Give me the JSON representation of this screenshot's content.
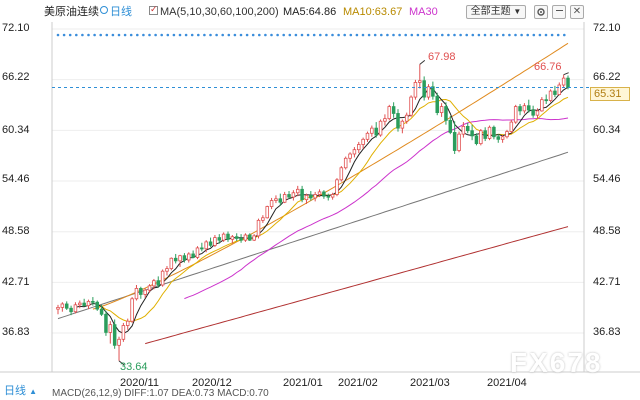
{
  "toolbar": {
    "instrument": "美原油连续",
    "period": "日线",
    "period_icon": "circle-icon",
    "ma_label": "MA(5,10,30,60,100,200)",
    "ma5": "MA5:64.86",
    "ma10": "MA10:63.67",
    "ma30": "MA30",
    "theme_button": "全部主题",
    "theme_button_icon": "chevron-down-icon",
    "icons": [
      "gear-icon",
      "minimize-icon",
      "close-icon"
    ]
  },
  "colors": {
    "up": "#e05050",
    "down": "#2a9d5c",
    "ma5": "#222222",
    "ma10": "#e0b000",
    "ma30": "#cc33cc",
    "ma60": "#e08a1e",
    "ma100": "#777777",
    "ma200": "#b03030",
    "dashline": "#2f8fd6"
  },
  "footer": {
    "period": "日线",
    "macd_text": "MACD(26,12,9) DIFF:1.07 DEA:0.73 MACD:0.70"
  },
  "watermark": "FX678",
  "chart_data": {
    "type": "candlestick",
    "title": "美原油连续",
    "period": "日线",
    "y_ticks": [
      "72.10",
      "66.22",
      "60.34",
      "54.46",
      "48.58",
      "42.71",
      "36.83"
    ],
    "x_ticks": [
      "2020/11",
      "2020/12",
      "2021/01",
      "2021/02",
      "2021/03",
      "2021/04"
    ],
    "ylim": [
      33.0,
      73.0
    ],
    "current_price": "65.31",
    "annotations": {
      "high": "67.98",
      "low": "33.64",
      "recent_high": "66.76"
    },
    "candles": [
      [
        39.6,
        40.1,
        39.0,
        39.8
      ],
      [
        39.8,
        40.4,
        39.3,
        40.2
      ],
      [
        40.2,
        40.5,
        39.5,
        39.7
      ],
      [
        39.7,
        40.0,
        38.9,
        39.3
      ],
      [
        39.3,
        40.4,
        39.1,
        40.1
      ],
      [
        40.1,
        40.6,
        39.7,
        40.3
      ],
      [
        40.3,
        40.8,
        39.9,
        40.0
      ],
      [
        40.0,
        40.7,
        39.6,
        40.5
      ],
      [
        40.5,
        41.0,
        40.0,
        40.4
      ],
      [
        40.4,
        40.6,
        39.4,
        39.6
      ],
      [
        39.6,
        40.1,
        38.8,
        39.0
      ],
      [
        39.0,
        39.4,
        36.5,
        36.9
      ],
      [
        36.9,
        38.2,
        35.6,
        37.8
      ],
      [
        37.8,
        38.4,
        35.0,
        35.4
      ],
      [
        35.4,
        36.4,
        33.6,
        36.1
      ],
      [
        36.1,
        38.0,
        35.8,
        37.7
      ],
      [
        37.7,
        38.5,
        37.2,
        38.2
      ],
      [
        38.2,
        41.0,
        38.0,
        40.8
      ],
      [
        40.8,
        42.4,
        40.6,
        42.0
      ],
      [
        42.0,
        42.2,
        40.8,
        41.3
      ],
      [
        41.3,
        42.0,
        40.9,
        41.8
      ],
      [
        41.8,
        42.5,
        41.5,
        42.3
      ],
      [
        42.3,
        43.1,
        41.9,
        42.9
      ],
      [
        42.9,
        43.4,
        42.1,
        42.4
      ],
      [
        42.4,
        44.2,
        42.2,
        44.0
      ],
      [
        44.0,
        44.6,
        43.5,
        44.3
      ],
      [
        44.3,
        45.6,
        44.1,
        45.5
      ],
      [
        45.5,
        46.0,
        44.9,
        45.2
      ],
      [
        45.2,
        45.9,
        44.5,
        45.8
      ],
      [
        45.8,
        46.1,
        45.0,
        45.3
      ],
      [
        45.3,
        46.2,
        45.0,
        46.0
      ],
      [
        46.0,
        46.4,
        45.5,
        45.6
      ],
      [
        45.6,
        46.9,
        45.4,
        46.7
      ],
      [
        46.7,
        47.3,
        46.3,
        46.6
      ],
      [
        46.6,
        47.6,
        46.2,
        47.4
      ],
      [
        47.4,
        47.9,
        46.8,
        47.0
      ],
      [
        47.0,
        48.2,
        46.8,
        47.9
      ],
      [
        47.9,
        48.3,
        47.2,
        47.6
      ],
      [
        47.6,
        48.5,
        47.4,
        48.3
      ],
      [
        48.3,
        48.6,
        47.4,
        47.7
      ],
      [
        47.7,
        48.2,
        47.2,
        48.0
      ],
      [
        48.0,
        48.4,
        47.5,
        47.8
      ],
      [
        47.8,
        48.3,
        47.3,
        47.6
      ],
      [
        47.6,
        48.4,
        47.4,
        48.2
      ],
      [
        48.2,
        48.4,
        47.5,
        47.6
      ],
      [
        47.6,
        48.3,
        47.5,
        48.1
      ],
      [
        48.1,
        50.1,
        47.8,
        49.9
      ],
      [
        49.9,
        50.5,
        49.6,
        50.2
      ],
      [
        50.2,
        51.6,
        50.1,
        51.5
      ],
      [
        51.5,
        52.5,
        51.2,
        52.2
      ],
      [
        52.2,
        52.8,
        51.9,
        52.4
      ],
      [
        52.4,
        53.0,
        51.6,
        52.0
      ],
      [
        52.0,
        53.2,
        51.9,
        52.9
      ],
      [
        52.9,
        53.3,
        52.4,
        52.6
      ],
      [
        52.6,
        53.4,
        52.2,
        53.1
      ],
      [
        53.1,
        53.9,
        52.7,
        53.5
      ],
      [
        53.5,
        53.9,
        52.0,
        52.3
      ],
      [
        52.3,
        53.0,
        51.8,
        52.8
      ],
      [
        52.8,
        53.3,
        52.2,
        52.5
      ],
      [
        52.5,
        53.2,
        52.1,
        52.9
      ],
      [
        52.9,
        53.5,
        52.6,
        53.2
      ],
      [
        53.2,
        53.4,
        52.4,
        52.7
      ],
      [
        52.7,
        53.0,
        52.2,
        52.6
      ],
      [
        52.6,
        53.1,
        52.3,
        52.9
      ],
      [
        52.9,
        54.8,
        52.7,
        54.6
      ],
      [
        54.6,
        56.2,
        54.4,
        56.0
      ],
      [
        56.0,
        57.3,
        55.8,
        57.1
      ],
      [
        57.1,
        57.8,
        56.6,
        57.6
      ],
      [
        57.6,
        58.4,
        57.2,
        58.1
      ],
      [
        58.1,
        59.0,
        57.7,
        58.7
      ],
      [
        58.7,
        59.5,
        58.2,
        59.3
      ],
      [
        59.3,
        60.2,
        59.0,
        60.0
      ],
      [
        60.0,
        60.9,
        59.6,
        60.6
      ],
      [
        60.6,
        61.3,
        59.5,
        59.8
      ],
      [
        59.8,
        61.6,
        59.6,
        61.4
      ],
      [
        61.4,
        62.2,
        60.9,
        61.7
      ],
      [
        61.7,
        63.3,
        61.5,
        63.1
      ],
      [
        63.1,
        63.6,
        61.8,
        62.3
      ],
      [
        62.3,
        62.8,
        60.2,
        60.6
      ],
      [
        60.6,
        61.6,
        60.0,
        61.4
      ],
      [
        61.4,
        62.4,
        61.1,
        62.1
      ],
      [
        62.1,
        64.4,
        61.9,
        64.2
      ],
      [
        64.2,
        66.2,
        63.9,
        65.9
      ],
      [
        65.9,
        68.0,
        65.2,
        66.1
      ],
      [
        66.1,
        66.6,
        63.8,
        64.2
      ],
      [
        64.2,
        65.7,
        63.9,
        65.4
      ],
      [
        65.4,
        66.0,
        63.9,
        64.3
      ],
      [
        64.3,
        64.7,
        62.1,
        62.4
      ],
      [
        62.4,
        63.5,
        61.9,
        63.1
      ],
      [
        63.1,
        63.6,
        61.0,
        61.5
      ],
      [
        61.5,
        62.0,
        59.9,
        60.1
      ],
      [
        60.1,
        61.4,
        57.6,
        58.0
      ],
      [
        58.0,
        60.2,
        57.8,
        59.9
      ],
      [
        59.9,
        61.3,
        59.5,
        60.8
      ],
      [
        60.8,
        61.2,
        60.0,
        60.3
      ],
      [
        60.3,
        61.0,
        59.2,
        59.7
      ],
      [
        59.7,
        60.0,
        58.6,
        58.8
      ],
      [
        58.8,
        60.5,
        58.6,
        60.3
      ],
      [
        60.3,
        60.7,
        59.1,
        59.4
      ],
      [
        59.4,
        60.9,
        59.2,
        60.7
      ],
      [
        60.7,
        60.9,
        59.3,
        59.6
      ],
      [
        59.6,
        59.9,
        58.9,
        59.3
      ],
      [
        59.3,
        59.8,
        58.9,
        59.6
      ],
      [
        59.6,
        60.4,
        59.4,
        60.2
      ],
      [
        60.2,
        61.6,
        60.0,
        61.3
      ],
      [
        61.3,
        63.3,
        61.1,
        63.1
      ],
      [
        63.1,
        63.4,
        62.1,
        62.6
      ],
      [
        62.6,
        63.5,
        62.3,
        63.2
      ],
      [
        63.2,
        63.9,
        62.4,
        62.7
      ],
      [
        62.7,
        63.2,
        61.8,
        62.1
      ],
      [
        62.1,
        62.9,
        61.7,
        62.6
      ],
      [
        62.6,
        64.2,
        62.5,
        63.9
      ],
      [
        63.9,
        64.5,
        63.4,
        63.8
      ],
      [
        63.8,
        65.1,
        63.6,
        64.9
      ],
      [
        64.9,
        65.5,
        64.2,
        64.5
      ],
      [
        64.5,
        65.9,
        64.4,
        65.6
      ],
      [
        65.6,
        66.8,
        65.3,
        66.4
      ],
      [
        66.4,
        66.7,
        65.1,
        65.31
      ]
    ]
  }
}
